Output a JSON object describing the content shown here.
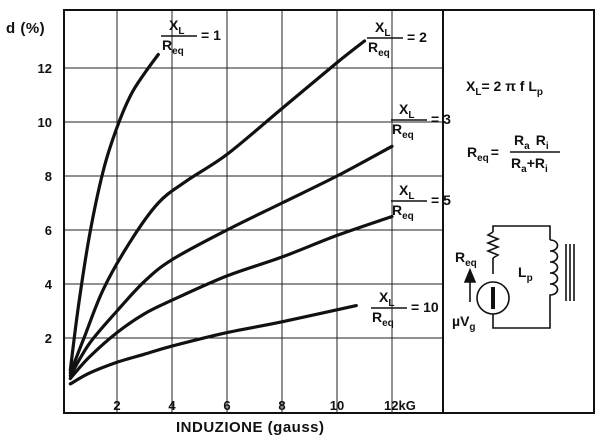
{
  "chart_data": {
    "type": "line",
    "title": "",
    "xlabel": "INDUZIONE (gauss)",
    "ylabel": "d (%)",
    "xlim": [
      0,
      13
    ],
    "ylim": [
      0,
      14
    ],
    "x_ticks": [
      "2",
      "4",
      "6",
      "8",
      "10",
      "12kG"
    ],
    "y_ticks": [
      "2",
      "4",
      "6",
      "8",
      "10",
      "12"
    ],
    "grid": true,
    "series": [
      {
        "name": "XL/Req = 1",
        "label": {
          "num": "X",
          "num_sub": "L",
          "den": "R",
          "den_sub": "eq",
          "value": "= 1"
        },
        "x": [
          0.3,
          0.6,
          1.0,
          1.5,
          2.0,
          2.5,
          3.0,
          3.5
        ],
        "y": [
          0.8,
          3.2,
          5.8,
          8.2,
          9.8,
          11.0,
          11.8,
          12.5
        ]
      },
      {
        "name": "XL/Req = 2",
        "label": {
          "num": "X",
          "num_sub": "L",
          "den": "R",
          "den_sub": "eq",
          "value": "= 2"
        },
        "x": [
          0.3,
          0.8,
          1.5,
          2.5,
          3.5,
          4.5,
          6.0,
          8.0,
          10.0,
          11.0
        ],
        "y": [
          0.7,
          2.0,
          3.8,
          5.6,
          7.0,
          7.8,
          8.8,
          10.5,
          12.2,
          13.0
        ]
      },
      {
        "name": "XL/Req = 3",
        "label": {
          "num": "X",
          "num_sub": "L",
          "den": "R",
          "den_sub": "eq",
          "value": "= 3"
        },
        "x": [
          0.3,
          1.0,
          2.0,
          3.0,
          4.0,
          6.0,
          8.0,
          10.0,
          12.0
        ],
        "y": [
          0.6,
          1.8,
          3.0,
          4.1,
          4.9,
          6.0,
          7.0,
          8.0,
          9.1
        ]
      },
      {
        "name": "XL/Req = 5",
        "label": {
          "num": "X",
          "num_sub": "L",
          "den": "R",
          "den_sub": "eq",
          "value": "= 5"
        },
        "x": [
          0.3,
          1.0,
          2.0,
          3.0,
          4.0,
          6.0,
          8.0,
          10.0,
          12.0
        ],
        "y": [
          0.5,
          1.3,
          2.2,
          2.9,
          3.4,
          4.3,
          5.0,
          5.8,
          6.5
        ]
      },
      {
        "name": "XL/Req = 10",
        "label": {
          "num": "X",
          "num_sub": "L",
          "den": "R",
          "den_sub": "eq",
          "value": "= 10"
        },
        "x": [
          0.3,
          1.0,
          2.0,
          3.0,
          4.0,
          6.0,
          8.0,
          10.7
        ],
        "y": [
          0.3,
          0.7,
          1.1,
          1.4,
          1.7,
          2.2,
          2.6,
          3.2
        ]
      }
    ]
  },
  "side_panel": {
    "formula_xl": {
      "lhs": "X",
      "lhs_sub": "L",
      "rhs": "= 2 π f L",
      "rhs_sub": "p"
    },
    "formula_req": {
      "lhs": "R",
      "lhs_sub": "eq",
      "eq": "=",
      "num": "R",
      "num_sub1": "a",
      "num_mid": "R",
      "num_sub2": "i",
      "den": "R",
      "den_sub1": "a",
      "den_mid": "+R",
      "den_sub2": "i"
    },
    "circuit": {
      "req_label": "R",
      "req_sub": "eq",
      "source_label": "µV",
      "source_sub": "g",
      "lp_label": "L",
      "lp_sub": "p"
    }
  }
}
